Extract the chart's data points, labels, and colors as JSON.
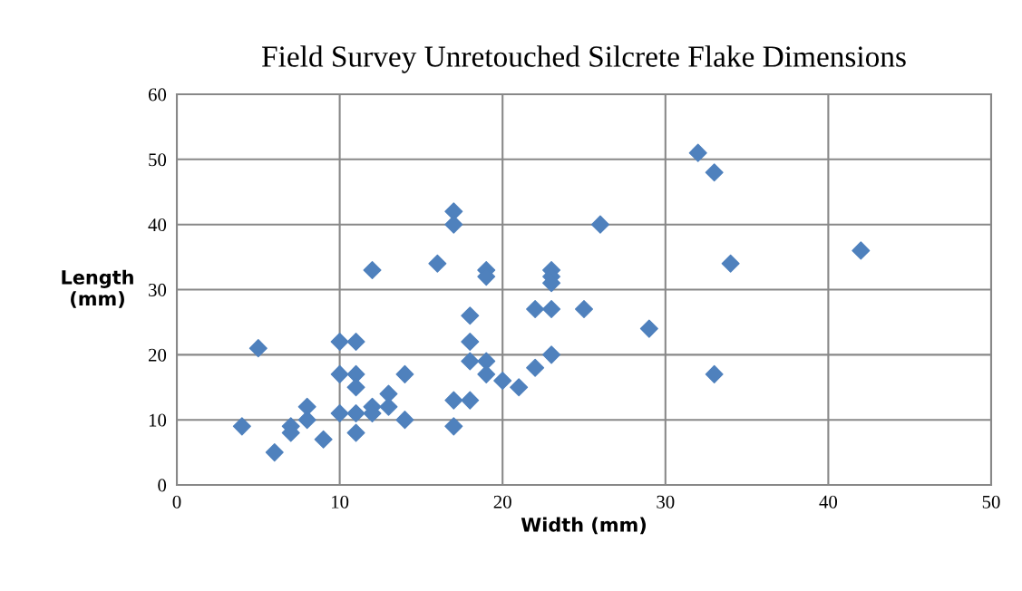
{
  "chart_data": {
    "type": "scatter",
    "title": "Field Survey Unretouched Silcrete Flake Dimensions",
    "xlabel": "Width (mm)",
    "ylabel": "Length\n(mm)",
    "x": [
      4,
      5,
      6,
      7,
      7,
      8,
      8,
      9,
      10,
      10,
      10,
      11,
      11,
      11,
      11,
      11,
      12,
      12,
      12,
      13,
      13,
      14,
      14,
      16,
      17,
      17,
      17,
      17,
      18,
      18,
      18,
      18,
      19,
      19,
      19,
      19,
      20,
      21,
      22,
      22,
      23,
      23,
      23,
      23,
      23,
      25,
      26,
      29,
      32,
      33,
      33,
      34,
      42
    ],
    "series": [
      {
        "color": "#4f81bd",
        "values": [
          9,
          21,
          5,
          9,
          8,
          12,
          10,
          7,
          22,
          17,
          11,
          22,
          17,
          15,
          11,
          8,
          33,
          12,
          11,
          14,
          12,
          17,
          10,
          34,
          42,
          40,
          13,
          9,
          26,
          22,
          19,
          13,
          33,
          32,
          19,
          17,
          16,
          15,
          27,
          18,
          33,
          32,
          31,
          27,
          20,
          27,
          40,
          24,
          51,
          48,
          17,
          34,
          36
        ]
      }
    ],
    "xlim": [
      0,
      50
    ],
    "xticks": [
      0,
      10,
      20,
      30,
      40,
      50
    ],
    "ylim": [
      0,
      60
    ],
    "yticks": [
      0,
      10,
      20,
      30,
      40,
      50,
      60
    ],
    "grid": true,
    "marker": "diamond"
  }
}
